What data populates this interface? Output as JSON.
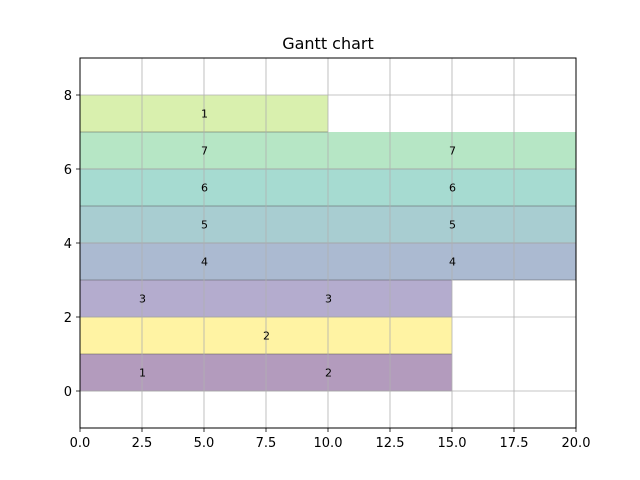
{
  "chart_data": {
    "type": "gantt",
    "title": "Gantt chart",
    "xlabel": "",
    "ylabel": "",
    "xlim": [
      0,
      20
    ],
    "ylim": [
      -1,
      9
    ],
    "xticks": [
      "0.0",
      "2.5",
      "5.0",
      "7.5",
      "10.0",
      "12.5",
      "15.0",
      "17.5",
      "20.0"
    ],
    "yticks": [
      "0",
      "2",
      "4",
      "6",
      "8"
    ],
    "grid": true,
    "bars": [
      {
        "row": 0,
        "start": 0,
        "end": 5,
        "label": "1",
        "color": "#b39bbd"
      },
      {
        "row": 0,
        "start": 5,
        "end": 15,
        "label": "2",
        "color": "#b39bbd"
      },
      {
        "row": 1,
        "start": 0,
        "end": 15,
        "label": "2",
        "color": "#fff3a3"
      },
      {
        "row": 2,
        "start": 0,
        "end": 5,
        "label": "3",
        "color": "#b4acce"
      },
      {
        "row": 2,
        "start": 5,
        "end": 15,
        "label": "3",
        "color": "#b4acce"
      },
      {
        "row": 3,
        "start": 0,
        "end": 10,
        "label": "4",
        "color": "#abbad1"
      },
      {
        "row": 3,
        "start": 10,
        "end": 20,
        "label": "4",
        "color": "#abbad1"
      },
      {
        "row": 4,
        "start": 0,
        "end": 10,
        "label": "5",
        "color": "#a8cdd1"
      },
      {
        "row": 4,
        "start": 10,
        "end": 20,
        "label": "5",
        "color": "#a8cdd1"
      },
      {
        "row": 5,
        "start": 0,
        "end": 10,
        "label": "6",
        "color": "#a6dbd1"
      },
      {
        "row": 5,
        "start": 10,
        "end": 20,
        "label": "6",
        "color": "#a6dbd1"
      },
      {
        "row": 6,
        "start": 0,
        "end": 10,
        "label": "7",
        "color": "#b6e6c5"
      },
      {
        "row": 6,
        "start": 10,
        "end": 20,
        "label": "7",
        "color": "#b6e6c5"
      },
      {
        "row": 7,
        "start": 0,
        "end": 10,
        "label": "1",
        "color": "#d9f0ae"
      }
    ]
  }
}
